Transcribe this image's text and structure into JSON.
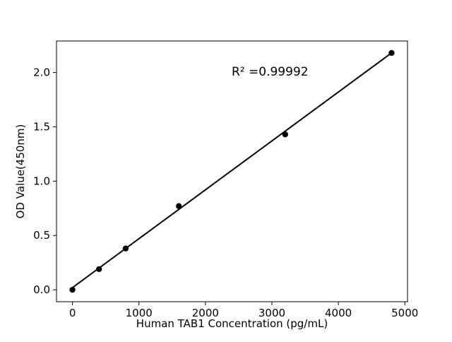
{
  "chart_data": {
    "type": "scatter",
    "title": "",
    "x": [
      0,
      400,
      800,
      1600,
      3200,
      4800
    ],
    "y": [
      0.0,
      0.19,
      0.38,
      0.77,
      1.43,
      2.18
    ],
    "fit_line": {
      "x": [
        0,
        4800
      ],
      "y": [
        0.02,
        2.18
      ]
    },
    "annotation": "R² =0.99992",
    "xlabel": "Human TAB1 Concentration (pg/mL)",
    "ylabel": "OD Value(450nm)",
    "xticks": {
      "values": [
        0,
        1000,
        2000,
        3000,
        4000,
        5000
      ],
      "labels": [
        "0",
        "1000",
        "2000",
        "3000",
        "4000",
        "5000"
      ]
    },
    "yticks": {
      "values": [
        0.0,
        0.5,
        1.0,
        1.5,
        2.0
      ],
      "labels": [
        "0.0",
        "0.5",
        "1.0",
        "1.5",
        "2.0"
      ]
    },
    "xlim": [
      -240,
      5040
    ],
    "ylim": [
      -0.11,
      2.29
    ],
    "grid": false,
    "legend": null,
    "marker_size_px": 8.3,
    "colors": {
      "marker": "#000000",
      "line": "#000000",
      "axis": "#000000",
      "text": "#000000",
      "background": "#ffffff"
    }
  }
}
